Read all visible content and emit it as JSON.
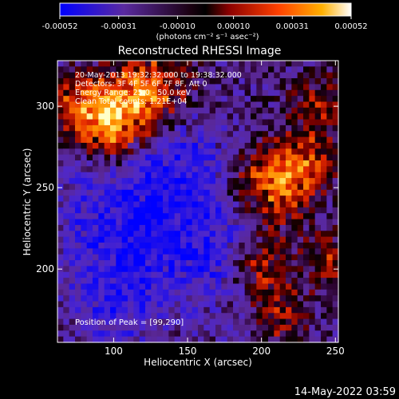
{
  "chart_data": {
    "type": "heatmap",
    "title": "Reconstructed RHESSI Image",
    "xlabel": "Heliocentric X (arcsec)",
    "ylabel": "Heliocentric Y (arcsec)",
    "xlim": [
      62,
      252
    ],
    "ylim": [
      155,
      328
    ],
    "xticks": [
      "100",
      "150",
      "200",
      "250"
    ],
    "yticks": [
      "200",
      "250",
      "300"
    ],
    "colorbar": {
      "ticks": [
        "-0.00052",
        "-0.00031",
        "-0.00010",
        "0.00010",
        "0.00031",
        "0.00052"
      ],
      "range": [
        -0.00052,
        0.00052
      ],
      "unit_label": "(photons cm⁻² s⁻¹ asec⁻²)"
    },
    "annotations": [
      "20-May-2013 19:32:32.000 to 19:38:32.000",
      "Detectors: 3F 4F 5F 6F 7F 8F, Att 0",
      "Energy Range: 25.0 - 50.0 keV",
      "Clean     Total counts: 1.21E+04"
    ],
    "peak_label": "Position of Peak = [99,290]",
    "peak": {
      "x": 99,
      "y": 290
    },
    "colors": {
      "negative_low": "#0000ff",
      "negative_mid": "#5a2aa0",
      "zero": "#000000",
      "positive_low": "#8a0000",
      "positive_mid": "#ff5000",
      "positive_high": "#ffb000",
      "peak": "#ffffe0"
    }
  },
  "timestamp": "14-May-2022 03:59"
}
